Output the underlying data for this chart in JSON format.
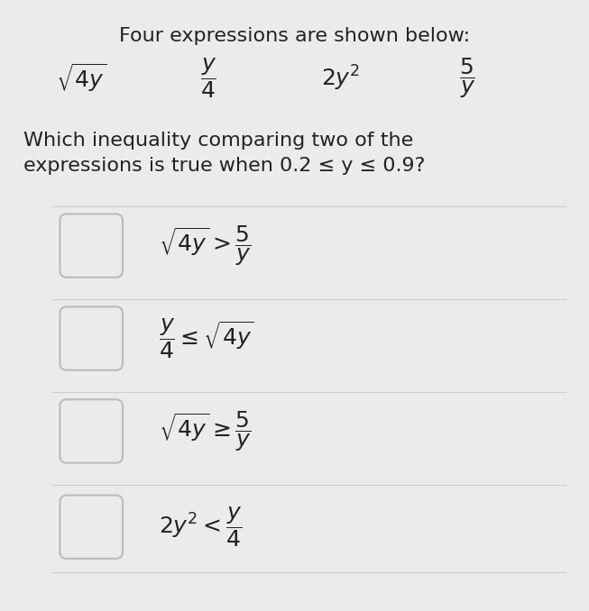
{
  "background_color": "#EBEBEB",
  "title_line1": "Four expressions are shown below:",
  "expressions": [
    "$\\sqrt{4y}$",
    "$\\dfrac{y}{4}$",
    "$2y^2$",
    "$\\dfrac{5}{y}$"
  ],
  "question_line1": "Which inequality comparing two of the",
  "question_line2": "expressions is true when 0.2 ≤ y ≤ 0.9?",
  "options": [
    "$\\sqrt{4y} > \\dfrac{5}{y}$",
    "$\\dfrac{y}{4} \\leq \\sqrt{4y}$",
    "$\\sqrt{4y} \\geq \\dfrac{5}{y}$",
    "$2y^2 < \\dfrac{y}{4}$"
  ],
  "text_color": "#222222",
  "divider_color": "#CCCCCC",
  "checkbox_color": "#BBBBBB",
  "title_fontsize": 16,
  "expr_fontsize": 18,
  "question_fontsize": 16,
  "option_fontsize": 18,
  "fig_width": 6.53,
  "fig_height": 6.78
}
